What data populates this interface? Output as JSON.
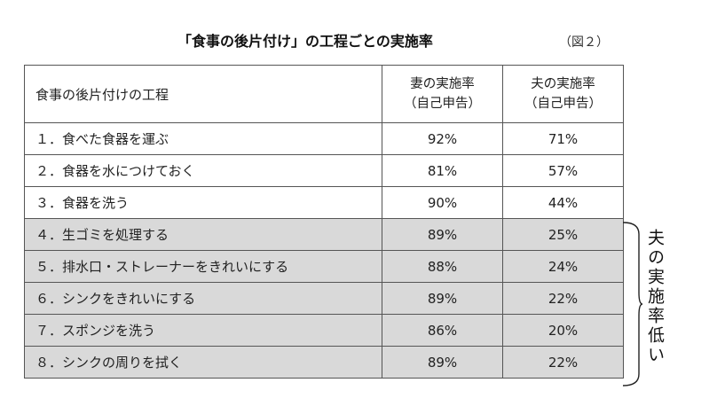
{
  "title": "「食事の後片付け」の工程ごとの実施率",
  "figure_no": "（図２）",
  "table": {
    "headers": {
      "step": "食事の後片付けの工程",
      "wife_line1": "妻の実施率",
      "wife_line2": "（自己申告）",
      "husband_line1": "夫の実施率",
      "husband_line2": "（自己申告）"
    },
    "rows": [
      {
        "step": "１．食べた食器を運ぶ",
        "wife": "92%",
        "husband": "71%"
      },
      {
        "step": "２．食器を水につけておく",
        "wife": "81%",
        "husband": "57%"
      },
      {
        "step": "３．食器を洗う",
        "wife": "90%",
        "husband": "44%"
      },
      {
        "step": "４．生ゴミを処理する",
        "wife": "89%",
        "husband": "25%"
      },
      {
        "step": "５．排水口・ストレーナーをきれいにする",
        "wife": "88%",
        "husband": "24%"
      },
      {
        "step": "６．シンクをきれいにする",
        "wife": "89%",
        "husband": "22%"
      },
      {
        "step": "７．スポンジを洗う",
        "wife": "86%",
        "husband": "20%"
      },
      {
        "step": "８．シンクの周りを拭く",
        "wife": "89%",
        "husband": "22%"
      }
    ]
  },
  "annotation": "夫の実施率低い",
  "colors": {
    "highlight_rows": "#d9d9d9",
    "border": "#555555"
  }
}
